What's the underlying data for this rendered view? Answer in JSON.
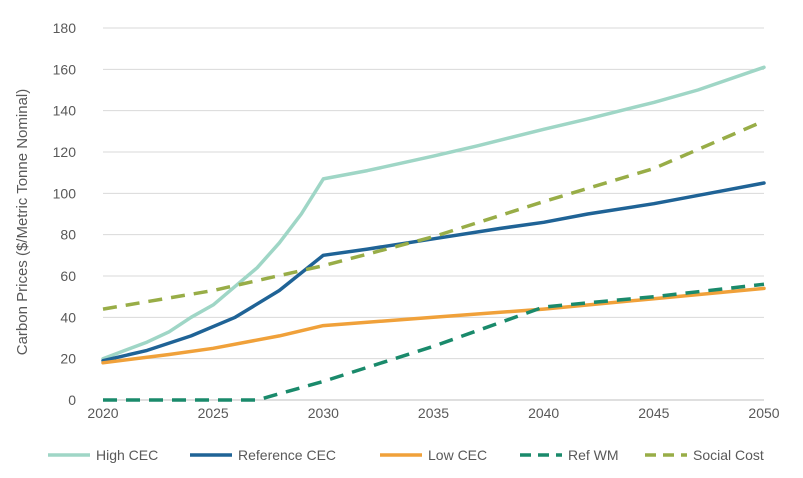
{
  "chart_data": {
    "type": "line",
    "title": "",
    "xlabel": "",
    "ylabel": "Carbon Prices ($/Metric Tonne Nominal)",
    "xlim": [
      2020,
      2050
    ],
    "ylim": [
      0,
      180
    ],
    "x_ticks": [
      "2020",
      "2025",
      "2030",
      "2035",
      "2040",
      "2045",
      "2050"
    ],
    "y_ticks": [
      "0",
      "20",
      "40",
      "60",
      "80",
      "100",
      "120",
      "140",
      "160",
      "180"
    ],
    "grid": "horizontal",
    "legend_position": "bottom",
    "series": [
      {
        "name": "High CEC",
        "color": "#9fd6c6",
        "dash": "solid",
        "x": [
          2020,
          2021,
          2022,
          2023,
          2024,
          2025,
          2026,
          2027,
          2028,
          2029,
          2030,
          2032,
          2035,
          2037,
          2040,
          2042,
          2045,
          2047,
          2050
        ],
        "y": [
          20,
          24,
          28,
          33,
          40,
          46,
          55,
          64,
          76,
          90,
          107,
          111,
          118,
          123,
          131,
          136,
          144,
          150,
          161
        ]
      },
      {
        "name": "Reference CEC",
        "color": "#1f6396",
        "dash": "solid",
        "x": [
          2020,
          2022,
          2024,
          2026,
          2028,
          2030,
          2032,
          2035,
          2038,
          2040,
          2042,
          2045,
          2048,
          2050
        ],
        "y": [
          19,
          24,
          31,
          40,
          53,
          70,
          73,
          78,
          83,
          86,
          90,
          95,
          101,
          105
        ]
      },
      {
        "name": "Low CEC",
        "color": "#f0a13a",
        "dash": "solid",
        "x": [
          2020,
          2023,
          2025,
          2028,
          2030,
          2035,
          2040,
          2045,
          2050
        ],
        "y": [
          18,
          22,
          25,
          31,
          36,
          40,
          44,
          49,
          54
        ]
      },
      {
        "name": "Ref WM",
        "color": "#1a8a6b",
        "dash": "dash",
        "x": [
          2020,
          2022,
          2025,
          2027,
          2030,
          2035,
          2040,
          2045,
          2050
        ],
        "y": [
          0,
          0,
          0,
          0,
          9,
          26,
          45,
          50,
          56
        ]
      },
      {
        "name": "Social Cost",
        "color": "#98ad47",
        "dash": "dash",
        "x": [
          2020,
          2025,
          2030,
          2035,
          2040,
          2045,
          2050
        ],
        "y": [
          44,
          53,
          65,
          79,
          96,
          112,
          135
        ]
      }
    ]
  }
}
